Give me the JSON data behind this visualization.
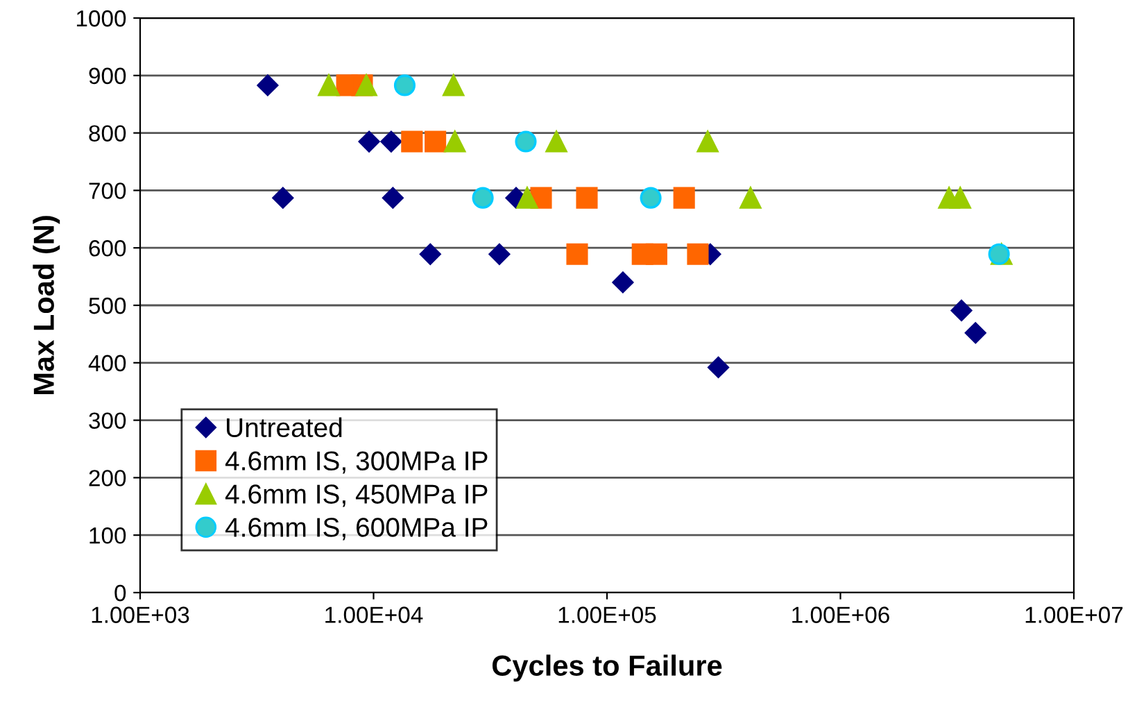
{
  "chart_data": {
    "type": "scatter",
    "xlabel": "Cycles to Failure",
    "ylabel": "Max Load (N)",
    "log": "x",
    "xlim": [
      1000,
      10000000
    ],
    "xticks": [
      {
        "value": 1000,
        "label": "1.00E+03"
      },
      {
        "value": 10000,
        "label": "1.00E+04"
      },
      {
        "value": 100000,
        "label": "1.00E+05"
      },
      {
        "value": 1000000,
        "label": "1.00E+06"
      },
      {
        "value": 10000000,
        "label": "1.00E+07"
      }
    ],
    "ylim": [
      0,
      1000
    ],
    "yticks": [
      0,
      100,
      200,
      300,
      400,
      500,
      600,
      700,
      800,
      900,
      1000
    ],
    "grid": "y",
    "legend": "bottom left",
    "series": [
      {
        "name": "Untreated",
        "color": "#000080",
        "marker": "diamond",
        "x": [
          3520,
          4090,
          9570,
          11900,
          12100,
          17500,
          34600,
          40800,
          117000,
          277000,
          300000,
          3300000,
          3790000
        ],
        "values": [
          883,
          687,
          785,
          785,
          687,
          589,
          589,
          687,
          540,
          589,
          392,
          491,
          452
        ]
      },
      {
        "name": "4.6mm IS, 300MPa IP",
        "color": "#ff6600",
        "marker": "square",
        "x": [
          7690,
          8930,
          14600,
          18400,
          52200,
          82000,
          214000,
          74500,
          142000,
          163000,
          245000
        ],
        "values": [
          883,
          883,
          785,
          785,
          687,
          687,
          687,
          589,
          589,
          589,
          589
        ]
      },
      {
        "name": "4.6mm IS, 450MPa IP",
        "color": "#99cc00",
        "marker": "triangle",
        "x": [
          6430,
          9310,
          22000,
          22300,
          60700,
          270000,
          45500,
          412000,
          2920000,
          3260000,
          4900000
        ],
        "values": [
          883,
          883,
          883,
          785,
          785,
          785,
          687,
          687,
          687,
          687,
          589
        ]
      },
      {
        "name": "4.6mm IS, 600MPa IP",
        "color": "#33cccc",
        "marker": "circle",
        "x": [
          13600,
          44900,
          29400,
          154000,
          4780000
        ],
        "values": [
          883,
          785,
          687,
          687,
          589
        ]
      }
    ]
  }
}
